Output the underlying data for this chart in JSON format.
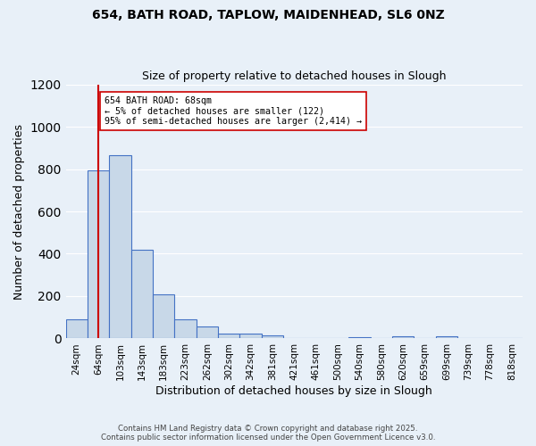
{
  "title_line1": "654, BATH ROAD, TAPLOW, MAIDENHEAD, SL6 0NZ",
  "title_line2": "Size of property relative to detached houses in Slough",
  "xlabel": "Distribution of detached houses by size in Slough",
  "ylabel": "Number of detached properties",
  "categories": [
    "24sqm",
    "64sqm",
    "103sqm",
    "143sqm",
    "183sqm",
    "223sqm",
    "262sqm",
    "302sqm",
    "342sqm",
    "381sqm",
    "421sqm",
    "461sqm",
    "500sqm",
    "540sqm",
    "580sqm",
    "620sqm",
    "659sqm",
    "699sqm",
    "739sqm",
    "778sqm",
    "818sqm"
  ],
  "values": [
    90,
    795,
    865,
    420,
    210,
    90,
    55,
    22,
    22,
    15,
    0,
    0,
    0,
    8,
    0,
    12,
    0,
    12,
    0,
    0,
    0
  ],
  "bar_color": "#c8d8e8",
  "bar_edge_color": "#4472c4",
  "vline_x": 1,
  "vline_color": "#cc0000",
  "annotation_text": "654 BATH ROAD: 68sqm\n← 5% of detached houses are smaller (122)\n95% of semi-detached houses are larger (2,414) →",
  "annotation_box_color": "#ffffff",
  "annotation_box_edge": "#cc0000",
  "ylim": [
    0,
    1200
  ],
  "yticks": [
    0,
    200,
    400,
    600,
    800,
    1000,
    1200
  ],
  "background_color": "#e8f0f8",
  "grid_color": "#ffffff",
  "footer_line1": "Contains HM Land Registry data © Crown copyright and database right 2025.",
  "footer_line2": "Contains public sector information licensed under the Open Government Licence v3.0."
}
